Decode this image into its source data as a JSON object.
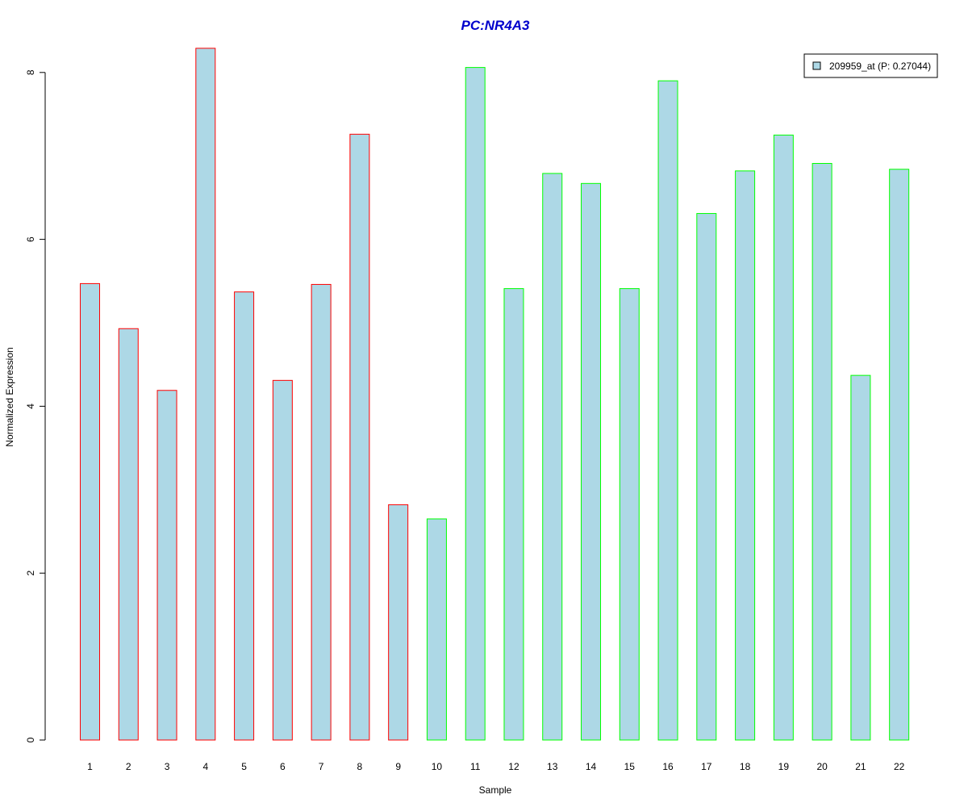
{
  "chart_data": {
    "type": "bar",
    "title": "PC:NR4A3",
    "xlabel": "Sample",
    "ylabel": "Normalized Expression",
    "categories": [
      "1",
      "2",
      "3",
      "4",
      "5",
      "6",
      "7",
      "8",
      "9",
      "10",
      "11",
      "12",
      "13",
      "14",
      "15",
      "16",
      "17",
      "18",
      "19",
      "20",
      "21",
      "22"
    ],
    "series": [
      {
        "name": "209959_at (P: 0.27044)",
        "values": [
          5.47,
          4.93,
          4.19,
          8.29,
          5.37,
          4.31,
          5.46,
          7.26,
          2.82,
          2.65,
          8.06,
          5.41,
          6.79,
          6.67,
          5.41,
          7.9,
          6.31,
          6.82,
          7.25,
          6.91,
          4.37,
          6.84
        ]
      }
    ],
    "groups": [
      1,
      1,
      1,
      1,
      1,
      1,
      1,
      1,
      1,
      2,
      2,
      2,
      2,
      2,
      2,
      2,
      2,
      2,
      2,
      2,
      2,
      2
    ],
    "yticks": [
      0,
      2,
      4,
      6,
      8
    ],
    "ylim": [
      0,
      8.3
    ],
    "legend_position": "top-right",
    "grid": false,
    "colors": {
      "title": "#0000cc",
      "bar_fill": "#add8e6",
      "group1_border": "#ff0000",
      "group2_border": "#00ff00",
      "axis": "#000000"
    }
  }
}
